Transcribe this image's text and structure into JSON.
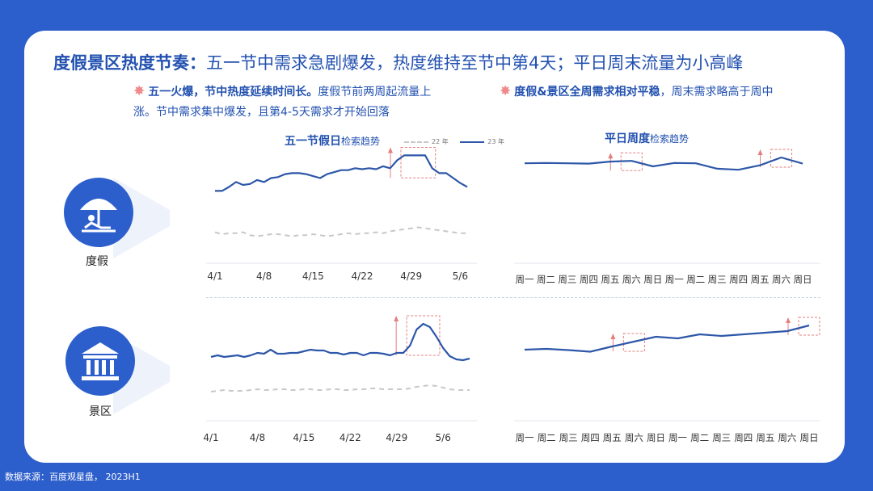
{
  "title": {
    "bold": "度假景区热度节奏：",
    "rest": "五一节中需求急剧爆发，热度维持至节中第4天；平日周末流量为小高峰"
  },
  "bullets": [
    {
      "bold": "五一火爆，节中热度延续时间长。",
      "line1_rest": "度假节前两周起流量上",
      "line2": "涨。节中需求集中爆发，且第4-5天需求才开始回落"
    },
    {
      "bold": "度假&景区全周需求相对平稳",
      "rest": "，周末需求略高于周中"
    }
  ],
  "panels": {
    "left_title": "五一节假日",
    "left_sub": "检索趋势",
    "right_title": "平日周度",
    "right_sub": "检索趋势"
  },
  "legend": {
    "s22": "22 年",
    "s23": "23 年"
  },
  "categories": [
    {
      "label": "度假",
      "icon": "beach-umbrella-icon"
    },
    {
      "label": "景区",
      "icon": "temple-icon"
    }
  ],
  "footer": "数据来源：百度观星盘， 2023H1",
  "colors": {
    "bg": "#2d5fcc",
    "line": "#2d57a8",
    "dash": "#c8c8c8",
    "highlight": "#e37f7f"
  },
  "chart_data": [
    {
      "type": "line",
      "row": "度假",
      "x_ticks": [
        "4/1",
        "4/8",
        "4/15",
        "4/22",
        "4/29",
        "5/6"
      ],
      "series": [
        {
          "name": "23 年",
          "values": [
            0.62,
            0.62,
            0.66,
            0.71,
            0.68,
            0.69,
            0.73,
            0.71,
            0.75,
            0.76,
            0.79,
            0.8,
            0.8,
            0.79,
            0.77,
            0.75,
            0.79,
            0.81,
            0.83,
            0.83,
            0.85,
            0.84,
            0.85,
            0.84,
            0.87,
            0.85,
            0.93,
            0.98,
            0.98,
            0.98,
            0.98,
            0.85,
            0.8,
            0.8,
            0.75,
            0.7,
            0.66
          ]
        },
        {
          "name": "22 年",
          "values": [
            0.2,
            0.18,
            0.19,
            0.19,
            0.2,
            0.17,
            0.16,
            0.17,
            0.18,
            0.18,
            0.17,
            0.16,
            0.17,
            0.17,
            0.18,
            0.17,
            0.16,
            0.17,
            0.18,
            0.19,
            0.18,
            0.19,
            0.19,
            0.2,
            0.19,
            0.21,
            0.22,
            0.23,
            0.24,
            0.25,
            0.24,
            0.23,
            0.22,
            0.21,
            0.2,
            0.19,
            0.19
          ]
        }
      ],
      "highlight_range": [
        27,
        31
      ]
    },
    {
      "type": "line",
      "row": "度假",
      "x_ticks": [
        "周一",
        "周二",
        "周三",
        "周四",
        "周五",
        "周六",
        "周日",
        "周一",
        "周二",
        "周三",
        "周四",
        "周五",
        "周六",
        "周日"
      ],
      "series": [
        {
          "name": "23 年",
          "values": [
            0.71,
            0.72,
            0.71,
            0.7,
            0.76,
            0.78,
            0.62,
            0.72,
            0.71,
            0.55,
            0.52,
            0.65,
            0.88,
            0.7
          ]
        }
      ],
      "highlight_index": [
        5,
        12
      ]
    },
    {
      "type": "line",
      "row": "景区",
      "x_ticks": [
        "4/1",
        "4/8",
        "4/15",
        "4/22",
        "4/29",
        "5/6"
      ],
      "series": [
        {
          "name": "23 年",
          "values": [
            0.58,
            0.6,
            0.58,
            0.59,
            0.6,
            0.58,
            0.6,
            0.63,
            0.62,
            0.67,
            0.62,
            0.62,
            0.63,
            0.63,
            0.65,
            0.67,
            0.66,
            0.66,
            0.63,
            0.63,
            0.61,
            0.63,
            0.63,
            0.6,
            0.63,
            0.63,
            0.62,
            0.6,
            0.63,
            0.63,
            0.72,
            0.92,
            0.99,
            0.95,
            0.83,
            0.69,
            0.59,
            0.55,
            0.54,
            0.56
          ]
        },
        {
          "name": "22 年",
          "values": [
            0.15,
            0.16,
            0.17,
            0.16,
            0.16,
            0.16,
            0.17,
            0.18,
            0.17,
            0.17,
            0.18,
            0.18,
            0.17,
            0.17,
            0.18,
            0.18,
            0.17,
            0.17,
            0.18,
            0.18,
            0.17,
            0.17,
            0.18,
            0.18,
            0.19,
            0.19,
            0.18,
            0.18,
            0.18,
            0.18,
            0.19,
            0.21,
            0.22,
            0.23,
            0.22,
            0.2,
            0.18,
            0.17,
            0.17,
            0.17
          ]
        }
      ],
      "highlight_range": [
        30,
        34
      ]
    },
    {
      "type": "line",
      "row": "景区",
      "x_ticks": [
        "周一",
        "周二",
        "周三",
        "周四",
        "周五",
        "周六",
        "周日",
        "周一",
        "周二",
        "周三",
        "周四",
        "周五",
        "周六",
        "周日"
      ],
      "series": [
        {
          "name": "23 年",
          "values": [
            0.3,
            0.32,
            0.29,
            0.25,
            0.38,
            0.5,
            0.62,
            0.58,
            0.68,
            0.64,
            0.68,
            0.72,
            0.76,
            0.9
          ]
        }
      ],
      "highlight_index": [
        5,
        13
      ]
    }
  ]
}
